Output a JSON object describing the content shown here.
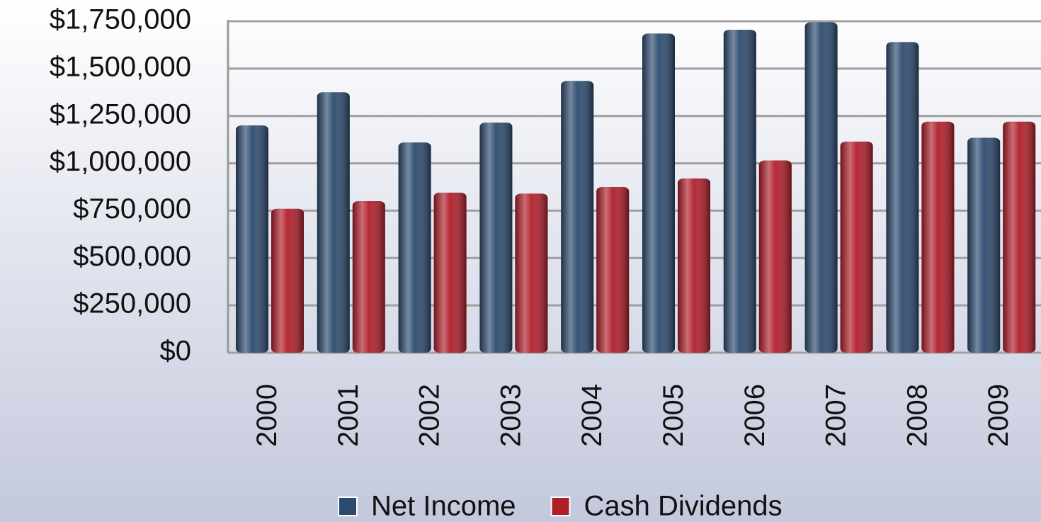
{
  "chart_data": {
    "type": "bar",
    "categories": [
      "2000",
      "2001",
      "2002",
      "2003",
      "2004",
      "2005",
      "2006",
      "2007",
      "2008",
      "2009"
    ],
    "series": [
      {
        "name": "Net Income",
        "color": "#2c4a6e",
        "values": [
          1200000,
          1375000,
          1110000,
          1215000,
          1435000,
          1685000,
          1705000,
          1745000,
          1640000,
          1135000
        ]
      },
      {
        "name": "Cash Dividends",
        "color": "#b01e2a",
        "values": [
          760000,
          800000,
          845000,
          840000,
          875000,
          920000,
          1015000,
          1115000,
          1220000,
          1220000
        ]
      }
    ],
    "ylim": [
      0,
      1750000
    ],
    "yticks": [
      {
        "value": 0,
        "label": "$0"
      },
      {
        "value": 250000,
        "label": "$250,000"
      },
      {
        "value": 500000,
        "label": "$500,000"
      },
      {
        "value": 750000,
        "label": "$750,000"
      },
      {
        "value": 1000000,
        "label": "$1,000,000"
      },
      {
        "value": 1250000,
        "label": "$1,250,000"
      },
      {
        "value": 1500000,
        "label": "$1,500,000"
      },
      {
        "value": 1750000,
        "label": "$1,750,000"
      }
    ],
    "grid": true,
    "legend": "bottom"
  }
}
